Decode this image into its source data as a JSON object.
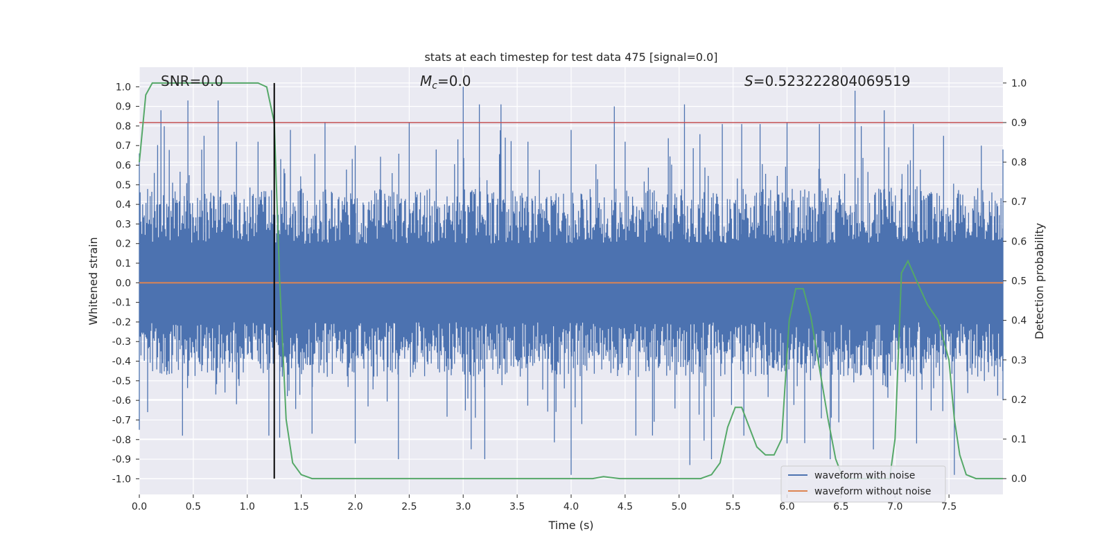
{
  "chart_data": {
    "type": "line",
    "title": "stats at each timestep for test data 475 [signal=0.0]",
    "xlabel": "Time (s)",
    "ylabel_left": "Whitened strain",
    "ylabel_right": "Detection probability",
    "xlim": [
      0.0,
      8.0
    ],
    "ylim_left": [
      -1.08,
      1.1
    ],
    "ylim_right": [
      -0.04,
      1.04
    ],
    "x_ticks": [
      "0.0",
      "0.5",
      "1.0",
      "1.5",
      "2.0",
      "2.5",
      "3.0",
      "3.5",
      "4.0",
      "4.5",
      "5.0",
      "5.5",
      "6.0",
      "6.5",
      "7.0",
      "7.5"
    ],
    "x_tick_values": [
      0,
      0.5,
      1,
      1.5,
      2,
      2.5,
      3,
      3.5,
      4,
      4.5,
      5,
      5.5,
      6,
      6.5,
      7,
      7.5
    ],
    "y_left_ticks": [
      "1.0",
      "0.9",
      "0.8",
      "0.7",
      "0.6",
      "0.5",
      "0.4",
      "0.3",
      "0.2",
      "0.1",
      "0.0",
      "-0.1",
      "-0.2",
      "-0.3",
      "-0.4",
      "-0.5",
      "-0.6",
      "-0.7",
      "-0.8",
      "-0.9",
      "-1.0"
    ],
    "y_left_tick_values": [
      1.0,
      0.9,
      0.8,
      0.7,
      0.6,
      0.5,
      0.4,
      0.3,
      0.2,
      0.1,
      0.0,
      -0.1,
      -0.2,
      -0.3,
      -0.4,
      -0.5,
      -0.6,
      -0.7,
      -0.8,
      -0.9,
      -1.0
    ],
    "y_right_ticks": [
      "1.0",
      "0.9",
      "0.8",
      "0.7",
      "0.6",
      "0.5",
      "0.4",
      "0.3",
      "0.2",
      "0.1",
      "0.0"
    ],
    "y_right_tick_values": [
      1.0,
      0.9,
      0.8,
      0.7,
      0.6,
      0.5,
      0.4,
      0.3,
      0.2,
      0.1,
      0.0
    ],
    "annotations": {
      "snr": "SNR=0.0",
      "mc_symbol": "M",
      "mc_sub": "c",
      "mc_value": "=0.0",
      "s_symbol": "S",
      "s_value": "=0.523222804069519"
    },
    "threshold_line": {
      "axis": "right",
      "y": 0.9,
      "color": "#c44e52"
    },
    "vertical_marker": {
      "x": 1.25,
      "color": "#000000"
    },
    "legend": {
      "position": "lower-right",
      "entries": [
        {
          "label": "waveform with noise",
          "color": "#4c72b0"
        },
        {
          "label": "waveform without noise",
          "color": "#dd8452"
        }
      ]
    },
    "series": [
      {
        "name": "waveform with noise",
        "axis": "left",
        "color": "#4c72b0",
        "style": "dense-noise",
        "envelope_max": [
          [
            0.0,
            0.66
          ],
          [
            0.2,
            0.88
          ],
          [
            0.45,
            0.93
          ],
          [
            0.6,
            0.75
          ],
          [
            0.73,
            0.93
          ],
          [
            0.9,
            0.72
          ],
          [
            1.1,
            0.72
          ],
          [
            1.4,
            0.78
          ],
          [
            1.72,
            0.82
          ],
          [
            2.0,
            0.7
          ],
          [
            2.5,
            0.82
          ],
          [
            2.75,
            0.68
          ],
          [
            3.0,
            1.0
          ],
          [
            3.15,
            0.91
          ],
          [
            3.35,
            0.91
          ],
          [
            3.6,
            0.72
          ],
          [
            4.0,
            0.78
          ],
          [
            4.4,
            0.9
          ],
          [
            4.5,
            0.72
          ],
          [
            5.05,
            0.91
          ],
          [
            5.4,
            0.81
          ],
          [
            5.58,
            0.81
          ],
          [
            5.75,
            0.81
          ],
          [
            6.0,
            0.82
          ],
          [
            6.3,
            0.81
          ],
          [
            6.63,
            0.98
          ],
          [
            6.9,
            0.88
          ],
          [
            7.17,
            0.81
          ],
          [
            7.45,
            0.75
          ],
          [
            7.8,
            0.7
          ],
          [
            8.0,
            0.68
          ]
        ],
        "envelope_min": [
          [
            0.0,
            -0.75
          ],
          [
            0.4,
            -0.78
          ],
          [
            0.9,
            -0.62
          ],
          [
            1.2,
            -0.78
          ],
          [
            1.3,
            -0.79
          ],
          [
            1.6,
            -0.77
          ],
          [
            2.0,
            -0.82
          ],
          [
            2.4,
            -0.9
          ],
          [
            3.2,
            -0.9
          ],
          [
            4.0,
            -0.98
          ],
          [
            4.6,
            -0.78
          ],
          [
            5.1,
            -0.93
          ],
          [
            5.3,
            -0.9
          ],
          [
            5.6,
            -0.78
          ],
          [
            6.0,
            -0.82
          ],
          [
            6.4,
            -0.9
          ],
          [
            6.8,
            -0.85
          ],
          [
            7.2,
            -0.82
          ],
          [
            7.55,
            -0.98
          ],
          [
            8.0,
            -0.6
          ]
        ]
      },
      {
        "name": "waveform without noise",
        "axis": "left",
        "color": "#dd8452",
        "x": [
          0.0,
          8.0
        ],
        "y": [
          0.0,
          0.0
        ]
      },
      {
        "name": "detection probability",
        "axis": "right",
        "color": "#55a868",
        "x": [
          0.0,
          0.06,
          0.12,
          0.2,
          0.4,
          0.6,
          0.8,
          1.0,
          1.1,
          1.18,
          1.25,
          1.3,
          1.36,
          1.42,
          1.5,
          1.6,
          2.0,
          3.0,
          4.0,
          4.2,
          4.3,
          4.45,
          5.0,
          5.2,
          5.3,
          5.38,
          5.45,
          5.52,
          5.58,
          5.65,
          5.72,
          5.8,
          5.88,
          5.95,
          6.02,
          6.08,
          6.15,
          6.22,
          6.3,
          6.38,
          6.45,
          6.52,
          6.6,
          6.7,
          6.8,
          6.9,
          6.95,
          7.0,
          7.06,
          7.12,
          7.2,
          7.3,
          7.4,
          7.5,
          7.55,
          7.6,
          7.66,
          7.75,
          8.0
        ],
        "y": [
          0.8,
          0.97,
          1.0,
          1.0,
          1.0,
          1.0,
          1.0,
          1.0,
          1.0,
          0.99,
          0.9,
          0.5,
          0.15,
          0.04,
          0.01,
          0.0,
          0.0,
          0.0,
          0.0,
          0.0,
          0.005,
          0.0,
          0.0,
          0.0,
          0.01,
          0.04,
          0.13,
          0.18,
          0.18,
          0.13,
          0.08,
          0.06,
          0.06,
          0.1,
          0.4,
          0.48,
          0.48,
          0.41,
          0.28,
          0.15,
          0.05,
          0.0,
          0.0,
          0.0,
          0.0,
          0.0,
          0.0,
          0.1,
          0.52,
          0.55,
          0.5,
          0.44,
          0.4,
          0.3,
          0.15,
          0.06,
          0.01,
          0.0,
          0.0
        ]
      }
    ]
  }
}
